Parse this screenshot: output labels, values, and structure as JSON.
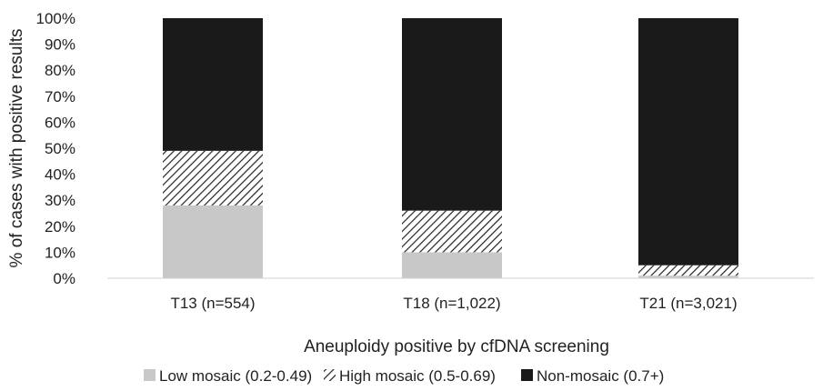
{
  "chart_data": {
    "type": "bar",
    "stacked": true,
    "categories": [
      "T13 (n=554)",
      "T18 (n=1,022)",
      "T21 (n=3,021)"
    ],
    "series": [
      {
        "name": "Low mosaic (0.2-0.49)",
        "values": [
          28,
          10,
          1
        ],
        "color": "#c8c8c8",
        "fill": "solid"
      },
      {
        "name": "High mosaic (0.5-0.69)",
        "values": [
          21,
          16,
          4
        ],
        "color": "#222222",
        "fill": "diagonal-hatch"
      },
      {
        "name": "Non-mosaic (0.7+)",
        "values": [
          51,
          74,
          95
        ],
        "color": "#1a1a1a",
        "fill": "solid"
      }
    ],
    "xlabel": "Aneuploidy positive by cfDNA screening",
    "ylabel": "% of cases with positive results",
    "ylim": [
      0,
      100
    ],
    "yticks": [
      "0%",
      "10%",
      "20%",
      "30%",
      "40%",
      "50%",
      "60%",
      "70%",
      "80%",
      "90%",
      "100%"
    ],
    "ytick_values": [
      0,
      10,
      20,
      30,
      40,
      50,
      60,
      70,
      80,
      90,
      100
    ],
    "grid": false,
    "legend_position": "bottom"
  }
}
